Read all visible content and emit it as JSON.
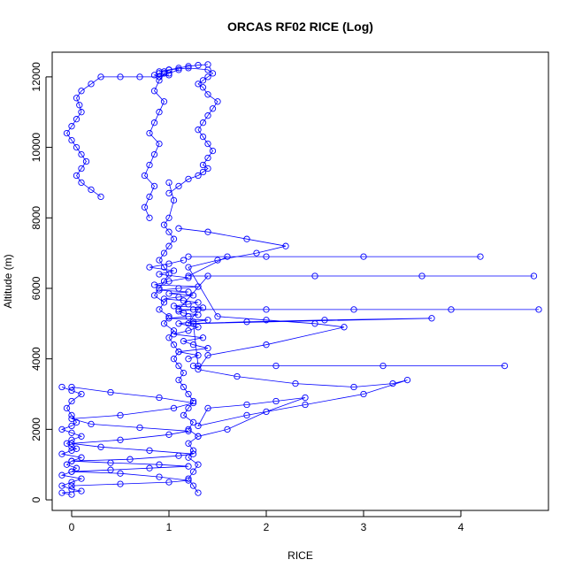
{
  "chart_data": {
    "type": "scatter",
    "title": "ORCAS RF02 RICE (Log)",
    "xlabel": "RICE",
    "ylabel": "Altitude (m)",
    "xlim": [
      -0.2,
      4.9
    ],
    "ylim": [
      -300,
      12700
    ],
    "x_ticks": [
      0,
      1,
      2,
      3,
      4
    ],
    "y_ticks": [
      0,
      2000,
      4000,
      6000,
      8000,
      10000,
      12000
    ],
    "grid": false,
    "legend": "none",
    "colors": {
      "series": "#0000ff",
      "frame": "#000000"
    },
    "marker": "open-circle",
    "connect_points": true,
    "series": [
      {
        "segment": "ascent-near-zero",
        "x": [
          0.0,
          -0.1,
          0.1,
          0.0,
          -0.1,
          0.0,
          0.1,
          -0.1,
          0.0,
          0.05,
          -0.05,
          0.0,
          0.1,
          -0.1,
          0.0,
          0.05,
          0.0,
          -0.05,
          0.0,
          0.1,
          0.0,
          -0.1,
          0.0,
          0.05,
          0.0,
          -0.05,
          0.0,
          0.1,
          0.0,
          -0.1
        ],
        "y": [
          150,
          200,
          250,
          300,
          400,
          500,
          600,
          700,
          800,
          900,
          1000,
          1100,
          1200,
          1300,
          1400,
          1450,
          1500,
          1600,
          1700,
          1800,
          1900,
          2000,
          2100,
          2200,
          2400,
          2600,
          2800,
          3000,
          3100,
          3200
        ]
      },
      {
        "segment": "near-zero-to-one-excursions",
        "x": [
          0.0,
          0.5,
          1.0,
          1.2,
          0.9,
          0.5,
          0.0,
          0.4,
          0.8,
          1.2,
          0.9,
          0.4,
          0.0,
          0.6,
          1.1,
          1.25,
          0.8,
          0.3,
          0.0,
          0.5,
          1.0,
          1.2,
          0.7,
          0.2,
          0.0,
          0.5,
          1.05,
          1.25,
          0.9,
          0.4,
          0.0
        ],
        "y": [
          400,
          450,
          500,
          550,
          650,
          750,
          800,
          850,
          900,
          950,
          1000,
          1050,
          1100,
          1150,
          1250,
          1300,
          1400,
          1500,
          1600,
          1700,
          1850,
          1950,
          2050,
          2150,
          2300,
          2400,
          2600,
          2750,
          2900,
          3050,
          3200
        ]
      },
      {
        "segment": "main-column-ascent",
        "x": [
          1.3,
          1.25,
          1.2,
          1.25,
          1.3,
          1.2,
          1.25,
          1.2,
          1.3,
          1.2,
          1.25,
          1.15,
          1.2,
          1.25,
          1.2,
          1.15,
          1.1,
          1.15,
          1.1,
          1.05,
          1.1,
          1.05,
          1.0,
          1.05,
          0.95,
          1.0,
          0.9,
          0.95,
          0.85,
          0.9,
          0.95,
          1.0,
          0.95,
          0.9,
          0.95,
          1.0,
          1.05,
          1.0,
          0.95,
          1.0,
          1.05,
          1.0
        ],
        "y": [
          200,
          400,
          600,
          800,
          1000,
          1200,
          1400,
          1600,
          1800,
          2000,
          2200,
          2400,
          2600,
          2800,
          3000,
          3200,
          3400,
          3600,
          3800,
          4000,
          4200,
          4400,
          4600,
          4800,
          5000,
          5200,
          5400,
          5600,
          5800,
          6000,
          6200,
          6400,
          6600,
          6800,
          7000,
          7200,
          7400,
          7600,
          7800,
          8000,
          8500,
          9000
        ]
      },
      {
        "segment": "scatter-cloud-4000-to-6500",
        "x": [
          1.2,
          1.3,
          1.1,
          1.4,
          1.25,
          1.15,
          1.35,
          1.05,
          1.2,
          1.3,
          1.1,
          1.25,
          1.4,
          1.0,
          1.2,
          1.3,
          1.15,
          1.1,
          1.25,
          1.35,
          1.05,
          1.2,
          1.3,
          1.15,
          0.95,
          1.1,
          1.25,
          1.0,
          1.2,
          0.9,
          1.1,
          1.3,
          0.85,
          1.0,
          1.2,
          0.9,
          1.05,
          0.8,
          1.0,
          1.15
        ],
        "y": [
          4000,
          4100,
          4200,
          4300,
          4400,
          4500,
          4600,
          4700,
          4800,
          4900,
          5000,
          5050,
          5100,
          5150,
          5200,
          5250,
          5300,
          5350,
          5400,
          5450,
          5500,
          5550,
          5600,
          5650,
          5700,
          5750,
          5800,
          5850,
          5900,
          5950,
          6000,
          6050,
          6100,
          6200,
          6300,
          6400,
          6500,
          6600,
          6700,
          6800
        ]
      },
      {
        "segment": "horizontal-runs",
        "x": [
          1.2,
          2.0,
          3.0,
          4.2,
          1.6,
          1.2,
          2.5,
          3.6,
          4.75,
          1.4,
          1.1,
          2.0,
          2.9,
          3.9,
          4.8,
          1.3,
          1.2,
          1.8,
          2.6,
          3.7,
          1.25,
          1.3,
          2.1,
          3.2,
          4.45,
          1.25
        ],
        "y": [
          6900,
          6900,
          6900,
          6900,
          6900,
          6350,
          6350,
          6350,
          6350,
          6350,
          5400,
          5400,
          5400,
          5400,
          5400,
          5400,
          5000,
          5050,
          5100,
          5150,
          5000,
          3800,
          3800,
          3800,
          3800,
          3800
        ]
      },
      {
        "segment": "diagonal-excursions",
        "x": [
          1.1,
          1.4,
          1.8,
          2.2,
          1.9,
          1.5,
          1.2,
          1.5,
          2.0,
          2.5,
          2.8,
          2.0,
          1.4,
          1.3,
          1.7,
          2.3,
          2.9,
          3.3,
          3.45,
          3.0,
          2.4,
          1.8,
          1.3,
          1.4,
          1.8,
          2.1,
          2.4,
          2.0,
          1.6,
          1.3
        ],
        "y": [
          7700,
          7600,
          7400,
          7200,
          7000,
          6800,
          6600,
          5200,
          5100,
          5000,
          4900,
          4400,
          4100,
          3700,
          3500,
          3300,
          3200,
          3300,
          3400,
          3000,
          2700,
          2400,
          2100,
          2600,
          2700,
          2800,
          2900,
          2500,
          2000,
          1800
        ]
      },
      {
        "segment": "upper-left-path",
        "x": [
          0.3,
          0.2,
          0.1,
          0.05,
          0.1,
          0.15,
          0.1,
          0.05,
          0.0,
          -0.05,
          0.0,
          0.05,
          0.1,
          0.08,
          0.05,
          0.1,
          0.2,
          0.3,
          0.5,
          0.7,
          0.9,
          1.0
        ],
        "y": [
          8600,
          8800,
          9000,
          9200,
          9400,
          9600,
          9800,
          10000,
          10200,
          10400,
          10600,
          10800,
          11000,
          11200,
          11400,
          11600,
          11800,
          12000,
          12000,
          12000,
          12000,
          12050
        ]
      },
      {
        "segment": "upper-middle-path",
        "x": [
          0.8,
          0.75,
          0.8,
          0.85,
          0.75,
          0.8,
          0.85,
          0.9,
          0.8,
          0.85,
          0.9,
          0.95,
          0.85,
          0.9,
          0.95,
          1.0,
          0.95,
          0.9,
          0.85,
          0.9,
          1.0,
          1.1
        ],
        "y": [
          8000,
          8300,
          8600,
          8900,
          9200,
          9500,
          9800,
          10100,
          10400,
          10700,
          11000,
          11300,
          11600,
          11900,
          12100,
          12200,
          12150,
          12100,
          12050,
          12000,
          12100,
          12200
        ]
      },
      {
        "segment": "upper-right-path",
        "x": [
          1.0,
          1.1,
          1.2,
          1.3,
          1.35,
          1.4,
          1.35,
          1.4,
          1.45,
          1.4,
          1.35,
          1.3,
          1.35,
          1.4,
          1.45,
          1.5,
          1.4,
          1.35,
          1.3,
          1.35,
          1.4,
          1.45,
          1.4,
          1.2,
          1.0,
          0.9,
          1.0,
          1.1,
          1.2,
          1.3,
          1.4
        ],
        "y": [
          8700,
          8900,
          9100,
          9200,
          9300,
          9400,
          9500,
          9700,
          9900,
          10100,
          10300,
          10500,
          10700,
          10900,
          11100,
          11300,
          11500,
          11700,
          11800,
          11900,
          12000,
          12100,
          12200,
          12250,
          12200,
          12150,
          12200,
          12250,
          12300,
          12330,
          12350
        ]
      }
    ]
  }
}
